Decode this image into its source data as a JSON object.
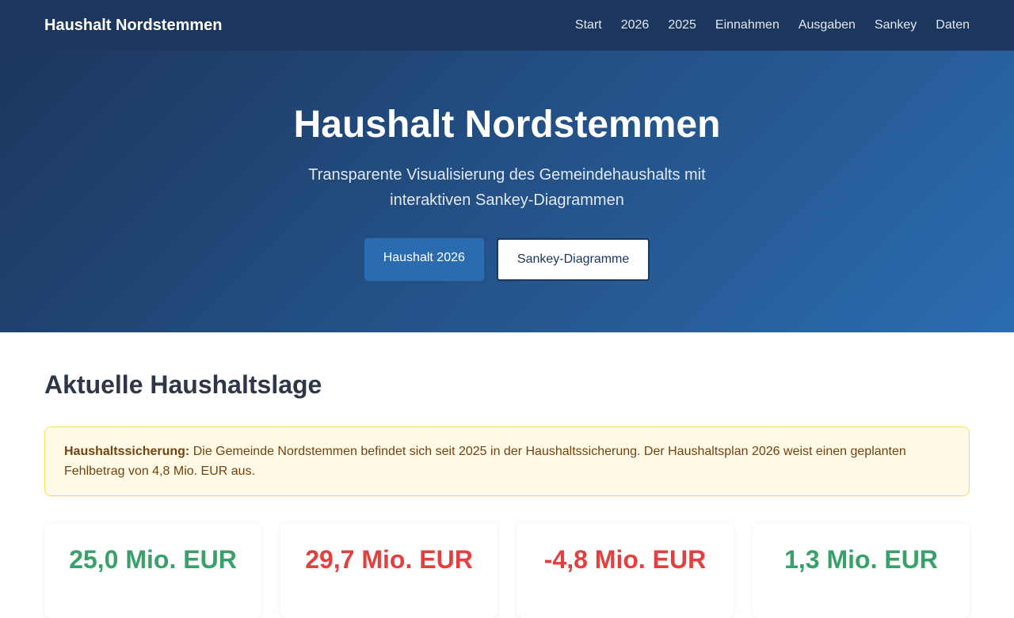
{
  "nav": {
    "brand": "Haushalt Nordstemmen",
    "links": [
      "Start",
      "2026",
      "2025",
      "Einnahmen",
      "Ausgaben",
      "Sankey",
      "Daten"
    ]
  },
  "hero": {
    "title": "Haushalt Nordstemmen",
    "subtitle": "Transparente Visualisierung des Gemeindehaushalts mit interaktiven Sankey-Diagrammen",
    "primary_button": "Haushalt 2026",
    "secondary_button": "Sankey-Diagramme"
  },
  "main": {
    "heading": "Aktuelle Haushaltslage",
    "alert_label": "Haushaltssicherung:",
    "alert_text": " Die Gemeinde Nordstemmen befindet sich seit 2025 in der Haushaltssicherung. Der Haushaltsplan 2026 weist einen geplanten Fehlbetrag von 4,8 Mio. EUR aus.",
    "cards": [
      {
        "value": "25,0 Mio. EUR",
        "color": "#38a169"
      },
      {
        "value": "29,7 Mio. EUR",
        "color": "#e53e3e"
      },
      {
        "value": "-4,8 Mio. EUR",
        "color": "#e53e3e"
      },
      {
        "value": "1,3 Mio. EUR",
        "color": "#38a169"
      }
    ]
  }
}
